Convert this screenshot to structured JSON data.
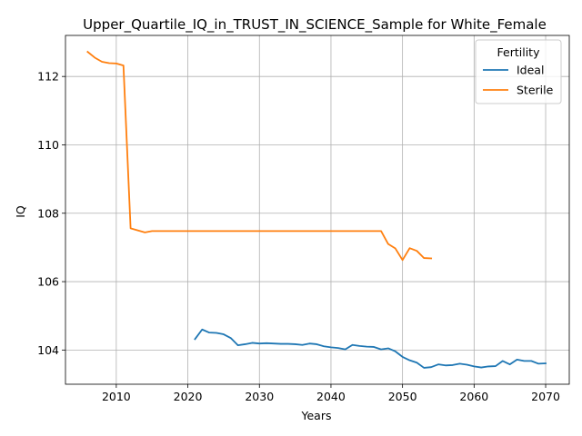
{
  "chart_data": {
    "type": "line",
    "title": "Upper_Quartile_IQ_in_TRUST_IN_SCIENCE_Sample for White_Female",
    "xlabel": "Years",
    "ylabel": "IQ",
    "xlim": [
      2002.9,
      2073.3
    ],
    "ylim": [
      103.0,
      113.2
    ],
    "x_ticks": [
      2010,
      2020,
      2030,
      2040,
      2050,
      2060,
      2070
    ],
    "y_ticks": [
      104,
      106,
      108,
      110,
      112
    ],
    "grid": true,
    "legend": {
      "title": "Fertility",
      "placement": "top-right"
    },
    "series": [
      {
        "name": "Ideal",
        "color": "#1f77b4",
        "x": [
          2021,
          2022,
          2023,
          2024,
          2025,
          2026,
          2027,
          2028,
          2029,
          2030,
          2031,
          2032,
          2033,
          2034,
          2035,
          2036,
          2037,
          2038,
          2039,
          2040,
          2041,
          2042,
          2043,
          2044,
          2045,
          2046,
          2047,
          2048,
          2049,
          2050,
          2051,
          2052,
          2053,
          2054,
          2055,
          2056,
          2057,
          2058,
          2059,
          2060,
          2061,
          2062,
          2063,
          2064,
          2065,
          2066,
          2067,
          2068,
          2069,
          2070
        ],
        "y": [
          104.32,
          104.6,
          104.51,
          104.5,
          104.46,
          104.35,
          104.14,
          104.17,
          104.21,
          104.19,
          104.2,
          104.19,
          104.18,
          104.18,
          104.17,
          104.15,
          104.19,
          104.17,
          104.11,
          104.08,
          104.06,
          104.02,
          104.15,
          104.12,
          104.1,
          104.09,
          104.02,
          104.05,
          103.96,
          103.8,
          103.7,
          103.63,
          103.48,
          103.5,
          103.58,
          103.55,
          103.56,
          103.6,
          103.57,
          103.52,
          103.49,
          103.52,
          103.53,
          103.68,
          103.58,
          103.72,
          103.68,
          103.68,
          103.6,
          103.61
        ]
      },
      {
        "name": "Sterile",
        "color": "#ff7f0e",
        "x": [
          2006,
          2007,
          2008,
          2009,
          2010,
          2011,
          2012,
          2013,
          2014,
          2015,
          2016,
          2017,
          2018,
          2019,
          2020,
          2021,
          2022,
          2023,
          2024,
          2025,
          2026,
          2027,
          2028,
          2029,
          2030,
          2031,
          2032,
          2033,
          2034,
          2035,
          2036,
          2037,
          2038,
          2039,
          2040,
          2041,
          2042,
          2043,
          2044,
          2045,
          2046,
          2047,
          2048,
          2049,
          2050,
          2051,
          2052,
          2053,
          2054
        ],
        "y": [
          112.72,
          112.55,
          112.43,
          112.39,
          112.38,
          112.32,
          107.56,
          107.5,
          107.44,
          107.48,
          107.48,
          107.48,
          107.48,
          107.48,
          107.48,
          107.48,
          107.48,
          107.48,
          107.48,
          107.48,
          107.48,
          107.48,
          107.48,
          107.48,
          107.48,
          107.48,
          107.48,
          107.48,
          107.48,
          107.48,
          107.48,
          107.48,
          107.48,
          107.48,
          107.48,
          107.48,
          107.48,
          107.48,
          107.48,
          107.48,
          107.48,
          107.48,
          107.1,
          106.97,
          106.63,
          106.98,
          106.9,
          106.69,
          106.68
        ]
      }
    ]
  }
}
